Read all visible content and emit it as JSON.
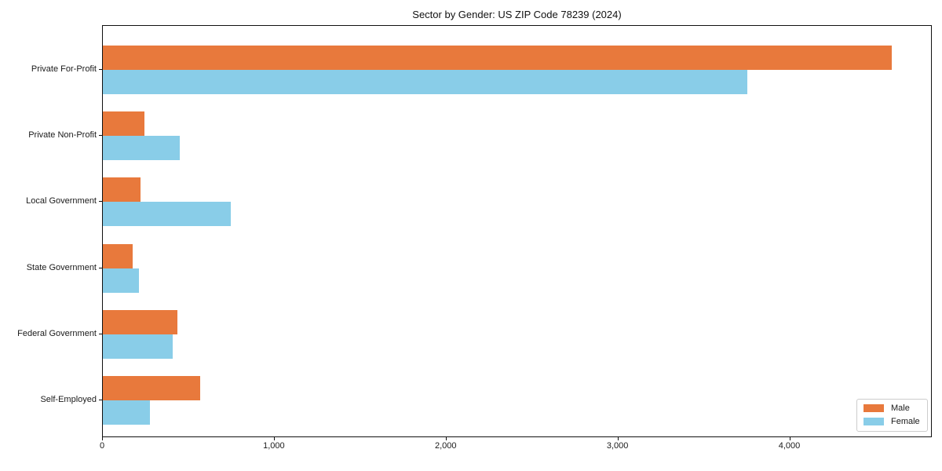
{
  "chart_data": {
    "type": "bar",
    "orientation": "horizontal",
    "title": "Sector by Gender: US ZIP Code 78239 (2024)",
    "xlabel": "",
    "ylabel": "",
    "categories": [
      "Private For-Profit",
      "Private Non-Profit",
      "Local Government",
      "State Government",
      "Federal Government",
      "Self-Employed"
    ],
    "series": [
      {
        "name": "Male",
        "color": "#e8793c",
        "values": [
          4590,
          240,
          220,
          175,
          435,
          565
        ]
      },
      {
        "name": "Female",
        "color": "#89cde8",
        "values": [
          3750,
          450,
          745,
          210,
          405,
          275
        ]
      }
    ],
    "xlim": [
      0,
      4820
    ],
    "xticks": [
      0,
      1000,
      2000,
      3000,
      4000
    ],
    "xtick_labels": [
      "0",
      "1,000",
      "2,000",
      "3,000",
      "4,000"
    ],
    "grid": false,
    "legend": {
      "position": "lower right",
      "entries": [
        "Male",
        "Female"
      ]
    }
  }
}
